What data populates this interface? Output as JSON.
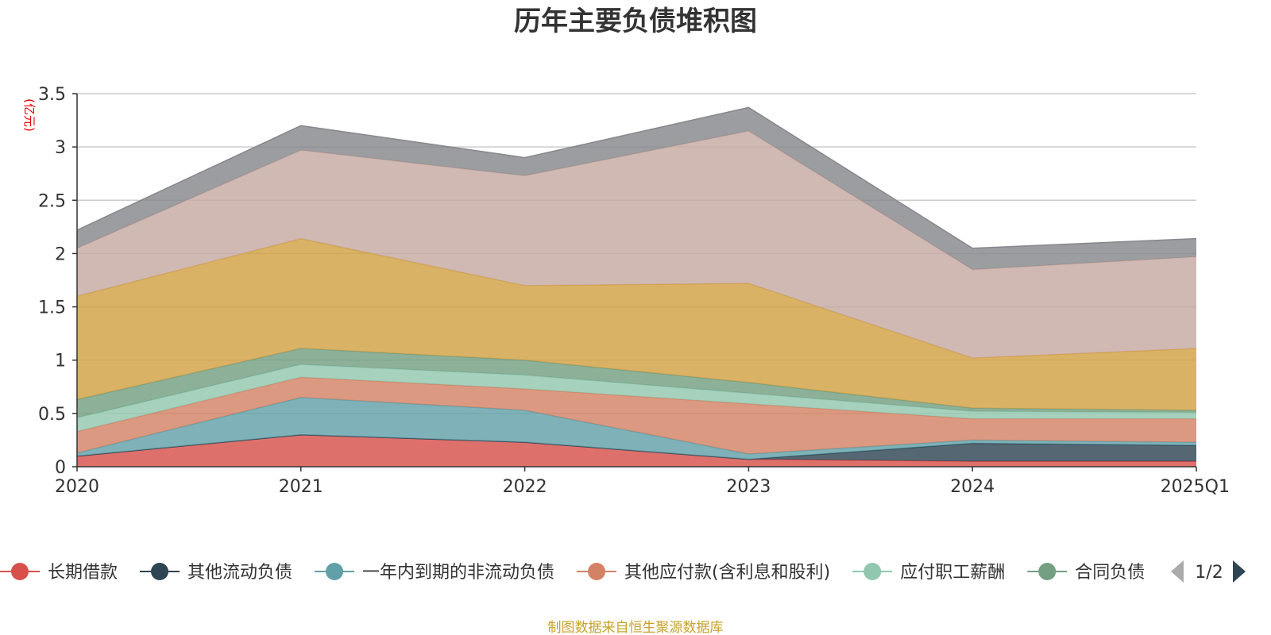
{
  "chart_data": {
    "type": "area",
    "stacked": true,
    "title": "历年主要负债堆积图",
    "unit_label": "(亿元)",
    "categories": [
      "2020",
      "2021",
      "2022",
      "2023",
      "2024",
      "2025Q1"
    ],
    "ylim": [
      0,
      3.5
    ],
    "yticks": [
      0,
      0.5,
      1,
      1.5,
      2,
      2.5,
      3,
      3.5
    ],
    "ytick_labels": [
      "0",
      "0.5",
      "1",
      "1.5",
      "2",
      "2.5",
      "3",
      "3.5"
    ],
    "grid": true,
    "series": [
      {
        "name": "长期借款",
        "color": "#d7504b",
        "legend": true,
        "values": [
          0.1,
          0.3,
          0.23,
          0.07,
          0.05,
          0.05
        ]
      },
      {
        "name": "其他流动负债",
        "color": "#2f4554",
        "legend": true,
        "values": [
          0.0,
          0.0,
          0.0,
          0.0,
          0.17,
          0.15
        ]
      },
      {
        "name": "一年内到期的非流动负债",
        "color": "#61a0a8",
        "legend": true,
        "values": [
          0.03,
          0.35,
          0.3,
          0.05,
          0.03,
          0.03
        ]
      },
      {
        "name": "其他应付款(含利息和股利)",
        "color": "#d48265",
        "legend": true,
        "values": [
          0.2,
          0.19,
          0.2,
          0.47,
          0.2,
          0.22
        ]
      },
      {
        "name": "应付职工薪酬",
        "color": "#91c7ae",
        "legend": true,
        "values": [
          0.13,
          0.12,
          0.13,
          0.1,
          0.07,
          0.06
        ]
      },
      {
        "name": "合同负债",
        "color": "#749f83",
        "legend": true,
        "values": [
          0.17,
          0.15,
          0.14,
          0.1,
          0.03,
          0.02
        ]
      },
      {
        "name": "",
        "color": "#d2a143",
        "legend": false,
        "values": [
          0.97,
          1.03,
          0.7,
          0.93,
          0.47,
          0.58
        ]
      },
      {
        "name": "",
        "color": "#c7aaa2",
        "legend": false,
        "values": [
          0.45,
          0.83,
          1.03,
          1.43,
          0.83,
          0.86
        ]
      },
      {
        "name": "",
        "color": "#86878c",
        "legend": false,
        "values": [
          0.17,
          0.23,
          0.17,
          0.22,
          0.2,
          0.17
        ]
      }
    ],
    "legend": {
      "position": "bottom",
      "page_indicator": "1/2",
      "prev_icon": "triangle-left-icon",
      "next_icon": "triangle-right-icon"
    },
    "source_note": "制图数据来自恒生聚源数据库"
  }
}
